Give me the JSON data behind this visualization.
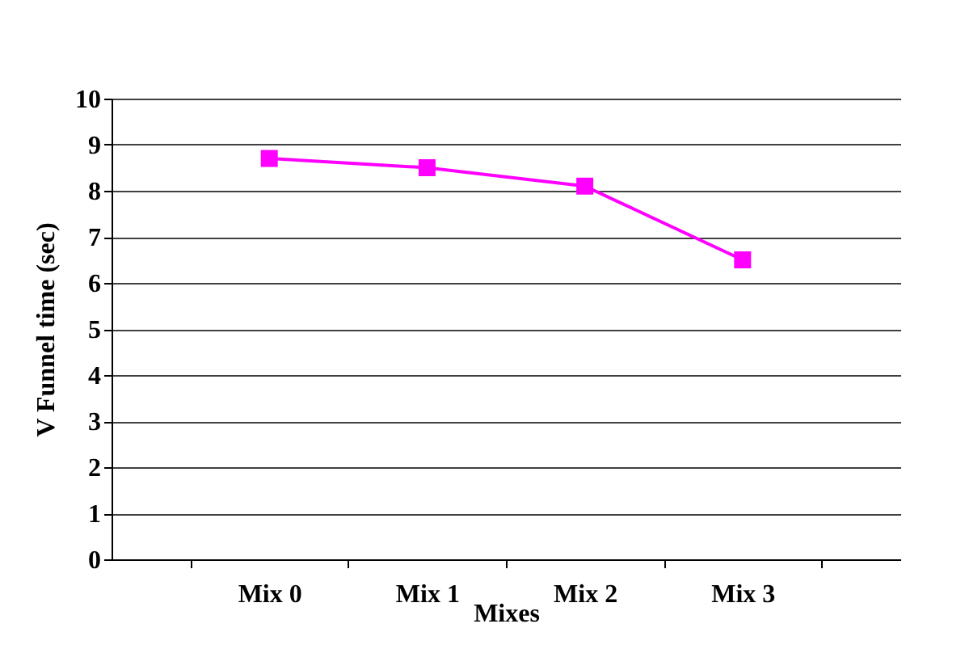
{
  "chart_data": {
    "type": "line",
    "xlabel": "Mixes",
    "ylabel": "V Funnel time (sec)",
    "categories": [
      "Mix 0",
      "Mix 1",
      "Mix 2",
      "Mix 3"
    ],
    "series": [
      {
        "color": "#ff00ff",
        "values": [
          8.7,
          8.5,
          8.1,
          6.5
        ]
      }
    ],
    "ylim": [
      0,
      10
    ],
    "yticks": [
      0,
      1,
      2,
      3,
      4,
      5,
      6,
      7,
      8,
      9,
      10
    ],
    "grid": "y",
    "marker": "square",
    "legend": false
  }
}
